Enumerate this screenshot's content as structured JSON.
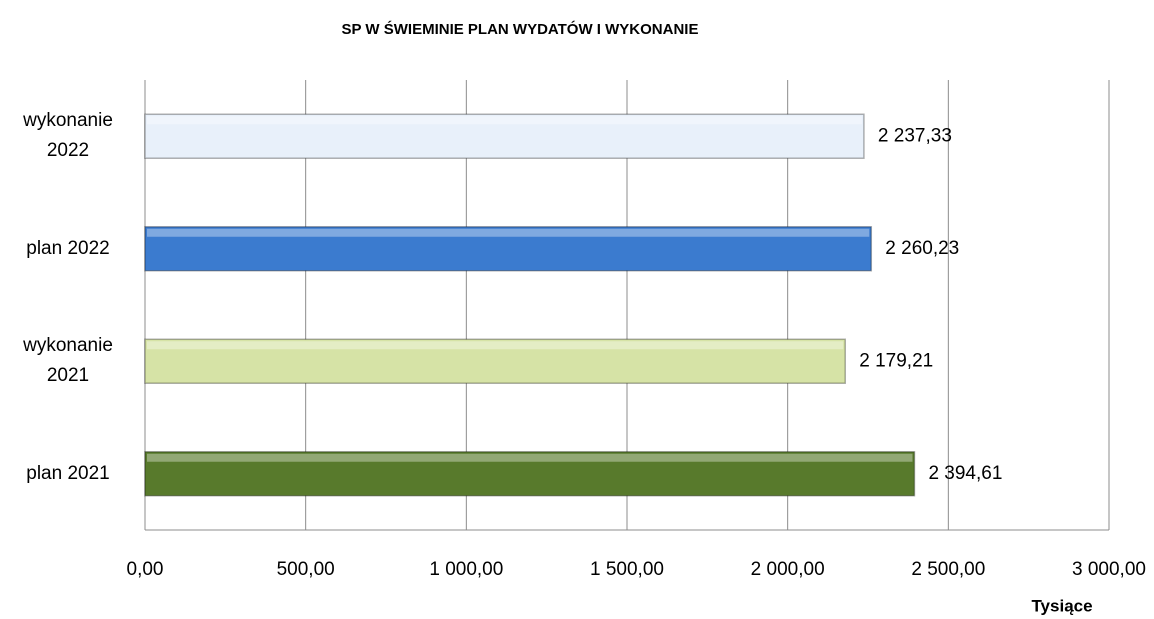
{
  "chart_data": {
    "type": "bar",
    "orientation": "horizontal",
    "title": "SP W ŚWIEMINIE PLAN WYDATÓW I WYKONANIE",
    "xlabel": "Tysiące",
    "categories": [
      "wykonanie 2022",
      "plan 2022",
      "wykonanie 2021",
      "plan 2021"
    ],
    "values": [
      2237.33,
      2260.23,
      2179.21,
      2394.61
    ],
    "value_labels": [
      "2 237,33",
      "2 260,23",
      "2 179,21",
      "2 394,61"
    ],
    "colors": [
      "#e8f0fa",
      "#3b7bcf",
      "#d6e3a6",
      "#587a2c"
    ],
    "xlim": [
      0,
      3000
    ],
    "xticks": [
      {
        "value": 0,
        "label": "0,00"
      },
      {
        "value": 500,
        "label": "500,00"
      },
      {
        "value": 1000,
        "label": "1 000,00"
      },
      {
        "value": 1500,
        "label": "1 500,00"
      },
      {
        "value": 2000,
        "label": "2 000,00"
      },
      {
        "value": 2500,
        "label": "2 500,00"
      },
      {
        "value": 3000,
        "label": "3 000,00"
      }
    ],
    "grid": true
  }
}
